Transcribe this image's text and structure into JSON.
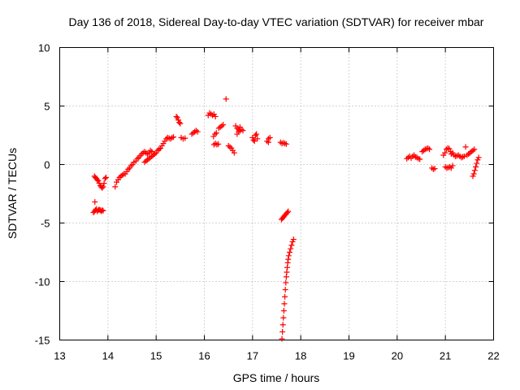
{
  "chart_data": {
    "type": "scatter",
    "title": "Day 136 of 2018, Sidereal Day-to-day VTEC variation (SDTVAR) for receiver mbar",
    "xlabel": "GPS time / hours",
    "ylabel": "SDTVAR / TECUs",
    "xlim": [
      13,
      22
    ],
    "ylim": [
      -15,
      10
    ],
    "xticks": [
      13,
      14,
      15,
      16,
      17,
      18,
      19,
      20,
      21,
      22
    ],
    "yticks": [
      -15,
      -10,
      -5,
      0,
      5,
      10
    ],
    "grid": true,
    "marker": "+",
    "color": "#ff0000",
    "series": [
      {
        "name": "SDTVAR",
        "points": [
          [
            13.72,
            -1.0
          ],
          [
            13.74,
            -1.1
          ],
          [
            13.76,
            -1.2
          ],
          [
            13.78,
            -1.3
          ],
          [
            13.8,
            -1.4
          ],
          [
            13.82,
            -1.6
          ],
          [
            13.84,
            -1.8
          ],
          [
            13.86,
            -1.9
          ],
          [
            13.88,
            -2.0
          ],
          [
            13.9,
            -1.9
          ],
          [
            13.92,
            -1.6
          ],
          [
            13.94,
            -1.2
          ],
          [
            13.96,
            -1.1
          ],
          [
            13.73,
            -3.2
          ],
          [
            13.7,
            -4.1
          ],
          [
            13.72,
            -4.0
          ],
          [
            13.74,
            -3.9
          ],
          [
            13.76,
            -3.8
          ],
          [
            13.78,
            -4.0
          ],
          [
            13.8,
            -3.9
          ],
          [
            13.82,
            -3.85
          ],
          [
            13.84,
            -3.9
          ],
          [
            13.86,
            -4.0
          ],
          [
            13.88,
            -3.9
          ],
          [
            13.9,
            -3.95
          ],
          [
            14.15,
            -1.9
          ],
          [
            14.18,
            -1.5
          ],
          [
            14.21,
            -1.3
          ],
          [
            14.24,
            -1.1
          ],
          [
            14.27,
            -1.0
          ],
          [
            14.3,
            -0.9
          ],
          [
            14.33,
            -0.8
          ],
          [
            14.36,
            -0.8
          ],
          [
            14.39,
            -0.6
          ],
          [
            14.42,
            -0.4
          ],
          [
            14.45,
            -0.3
          ],
          [
            14.48,
            -0.1
          ],
          [
            14.51,
            0.0
          ],
          [
            14.54,
            0.2
          ],
          [
            14.58,
            0.3
          ],
          [
            14.61,
            0.5
          ],
          [
            14.64,
            0.6
          ],
          [
            14.67,
            0.75
          ],
          [
            14.7,
            0.9
          ],
          [
            14.73,
            1.0
          ],
          [
            14.76,
            1.1
          ],
          [
            14.79,
            1.0
          ],
          [
            14.82,
            0.9
          ],
          [
            14.85,
            1.0
          ],
          [
            14.88,
            1.2
          ],
          [
            14.91,
            1.1
          ],
          [
            14.76,
            0.2
          ],
          [
            14.79,
            0.3
          ],
          [
            14.82,
            0.4
          ],
          [
            14.85,
            0.5
          ],
          [
            14.88,
            0.6
          ],
          [
            14.91,
            0.7
          ],
          [
            14.94,
            0.8
          ],
          [
            14.97,
            0.9
          ],
          [
            15.0,
            1.0
          ],
          [
            15.03,
            1.2
          ],
          [
            15.06,
            1.3
          ],
          [
            15.09,
            1.4
          ],
          [
            15.12,
            1.6
          ],
          [
            15.15,
            1.8
          ],
          [
            15.18,
            2.0
          ],
          [
            15.21,
            2.2
          ],
          [
            15.24,
            2.3
          ],
          [
            15.27,
            2.25
          ],
          [
            15.3,
            2.2
          ],
          [
            15.33,
            2.3
          ],
          [
            15.36,
            2.35
          ],
          [
            15.42,
            4.1
          ],
          [
            15.44,
            4.0
          ],
          [
            15.46,
            3.8
          ],
          [
            15.48,
            3.6
          ],
          [
            15.5,
            3.5
          ],
          [
            15.52,
            2.3
          ],
          [
            15.56,
            2.2
          ],
          [
            15.6,
            2.25
          ],
          [
            15.74,
            2.6
          ],
          [
            15.77,
            2.7
          ],
          [
            15.8,
            2.8
          ],
          [
            15.83,
            2.9
          ],
          [
            15.86,
            2.8
          ],
          [
            16.08,
            4.2
          ],
          [
            16.11,
            4.4
          ],
          [
            16.14,
            4.3
          ],
          [
            16.17,
            4.2
          ],
          [
            16.2,
            4.3
          ],
          [
            16.23,
            4.1
          ],
          [
            16.19,
            2.4
          ],
          [
            16.22,
            2.6
          ],
          [
            16.25,
            2.7
          ],
          [
            16.2,
            1.7
          ],
          [
            16.23,
            1.8
          ],
          [
            16.26,
            1.7
          ],
          [
            16.29,
            1.75
          ],
          [
            16.3,
            3.1
          ],
          [
            16.33,
            3.2
          ],
          [
            16.36,
            3.3
          ],
          [
            16.39,
            3.4
          ],
          [
            16.45,
            5.6
          ],
          [
            16.5,
            1.6
          ],
          [
            16.53,
            1.5
          ],
          [
            16.56,
            1.4
          ],
          [
            16.59,
            1.2
          ],
          [
            16.62,
            1.0
          ],
          [
            16.65,
            3.3
          ],
          [
            16.68,
            3.1
          ],
          [
            16.71,
            3.0
          ],
          [
            16.74,
            3.2
          ],
          [
            16.77,
            3.0
          ],
          [
            16.8,
            2.9
          ],
          [
            16.68,
            2.6
          ],
          [
            16.71,
            2.8
          ],
          [
            16.74,
            2.9
          ],
          [
            17.0,
            2.3
          ],
          [
            17.02,
            2.1
          ],
          [
            17.04,
            2.0
          ],
          [
            17.06,
            2.5
          ],
          [
            17.08,
            2.6
          ],
          [
            17.1,
            2.2
          ],
          [
            17.3,
            2.0
          ],
          [
            17.33,
            2.2
          ],
          [
            17.36,
            2.3
          ],
          [
            17.33,
            1.9
          ],
          [
            17.58,
            1.9
          ],
          [
            17.61,
            1.8
          ],
          [
            17.64,
            1.85
          ],
          [
            17.67,
            1.8
          ],
          [
            17.7,
            1.75
          ],
          [
            17.6,
            -4.7
          ],
          [
            17.62,
            -4.6
          ],
          [
            17.64,
            -4.5
          ],
          [
            17.66,
            -4.4
          ],
          [
            17.68,
            -4.3
          ],
          [
            17.7,
            -4.2
          ],
          [
            17.72,
            -4.1
          ],
          [
            17.74,
            -4.0
          ],
          [
            17.61,
            -14.9
          ],
          [
            17.62,
            -14.3
          ],
          [
            17.63,
            -13.7
          ],
          [
            17.64,
            -13.1
          ],
          [
            17.65,
            -12.5
          ],
          [
            17.66,
            -11.9
          ],
          [
            17.67,
            -11.3
          ],
          [
            17.68,
            -10.7
          ],
          [
            17.69,
            -10.1
          ],
          [
            17.7,
            -9.6
          ],
          [
            17.71,
            -9.2
          ],
          [
            17.72,
            -8.8
          ],
          [
            17.73,
            -8.4
          ],
          [
            17.74,
            -8.1
          ],
          [
            17.75,
            -7.8
          ],
          [
            17.77,
            -7.5
          ],
          [
            17.79,
            -7.2
          ],
          [
            17.81,
            -6.9
          ],
          [
            17.83,
            -6.6
          ],
          [
            17.85,
            -6.4
          ],
          [
            20.2,
            0.5
          ],
          [
            20.23,
            0.6
          ],
          [
            20.26,
            0.7
          ],
          [
            20.29,
            0.55
          ],
          [
            20.32,
            0.7
          ],
          [
            20.35,
            0.8
          ],
          [
            20.38,
            0.65
          ],
          [
            20.41,
            0.6
          ],
          [
            20.44,
            0.5
          ],
          [
            20.47,
            0.45
          ],
          [
            20.52,
            1.1
          ],
          [
            20.55,
            1.2
          ],
          [
            20.58,
            1.3
          ],
          [
            20.61,
            1.35
          ],
          [
            20.64,
            1.4
          ],
          [
            20.67,
            1.3
          ],
          [
            20.72,
            -0.3
          ],
          [
            20.75,
            -0.4
          ],
          [
            20.78,
            -0.35
          ],
          [
            20.96,
            0.8
          ],
          [
            20.99,
            1.0
          ],
          [
            21.02,
            1.3
          ],
          [
            21.05,
            1.4
          ],
          [
            21.08,
            1.35
          ],
          [
            21.11,
            1.1
          ],
          [
            21.0,
            -0.2
          ],
          [
            21.03,
            -0.3
          ],
          [
            21.06,
            -0.25
          ],
          [
            21.09,
            -0.2
          ],
          [
            21.12,
            -0.3
          ],
          [
            21.15,
            -0.1
          ],
          [
            21.12,
            0.9
          ],
          [
            21.15,
            1.0
          ],
          [
            21.18,
            0.8
          ],
          [
            21.21,
            0.7
          ],
          [
            21.24,
            0.75
          ],
          [
            21.27,
            0.8
          ],
          [
            21.3,
            0.7
          ],
          [
            21.33,
            0.6
          ],
          [
            21.36,
            0.65
          ],
          [
            21.39,
            0.7
          ],
          [
            21.42,
            1.5
          ],
          [
            21.45,
            0.8
          ],
          [
            21.48,
            0.9
          ],
          [
            21.51,
            1.0
          ],
          [
            21.54,
            1.1
          ],
          [
            21.57,
            1.2
          ],
          [
            21.6,
            1.3
          ],
          [
            21.57,
            -1.0
          ],
          [
            21.59,
            -0.8
          ],
          [
            21.61,
            -0.5
          ],
          [
            21.63,
            -0.2
          ],
          [
            21.65,
            0.1
          ],
          [
            21.67,
            0.4
          ],
          [
            21.69,
            0.6
          ]
        ]
      }
    ]
  }
}
